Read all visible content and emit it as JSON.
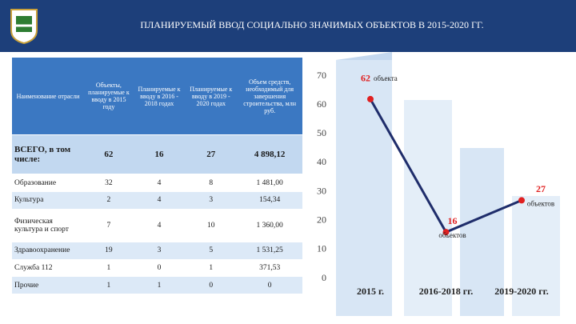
{
  "header": {
    "title": "ПЛАНИРУЕМЫЙ ВВОД СОЦИАЛЬНО ЗНАЧИМЫХ ОБЪЕКТОВ В 2015-2020 ГГ."
  },
  "table": {
    "columns": [
      "Наименование отрасли",
      "Объекты, планируемые к вводу в 2015 году",
      "Планируемые к вводу в 2016 - 2018 годах",
      "Планируемые к вводу в 2019 - 2020 годах",
      "Объем средств, необходимый для завершения строительства, млн руб."
    ],
    "rows": [
      [
        "ВСЕГО, в том числе:",
        "62",
        "16",
        "27",
        "4 898,12"
      ],
      [
        "Образование",
        "32",
        "4",
        "8",
        "1 481,00"
      ],
      [
        "Культура",
        "2",
        "4",
        "3",
        "154,34"
      ],
      [
        "Физическая культура и спорт",
        "7",
        "4",
        "10",
        "1 360,00"
      ],
      [
        "Здравоохранение",
        "19",
        "3",
        "5",
        "1 531,25"
      ],
      [
        "Служба 112",
        "1",
        "0",
        "1",
        "371,53"
      ],
      [
        "Прочие",
        "1",
        "1",
        "0",
        "0"
      ]
    ]
  },
  "chart_data": {
    "type": "line",
    "categories": [
      "2015 г.",
      "2016-2018 гг.",
      "2019-2020 гг."
    ],
    "values": [
      62,
      16,
      27
    ],
    "point_notes": [
      "объекта",
      "объектов",
      "объектов"
    ],
    "ylim": [
      0,
      70
    ],
    "yticks": [
      0,
      10,
      20,
      30,
      40,
      50,
      60,
      70
    ],
    "color": "#1f2d6b",
    "marker_color": "#e02020",
    "label_color": "#e02020",
    "grid": false
  }
}
